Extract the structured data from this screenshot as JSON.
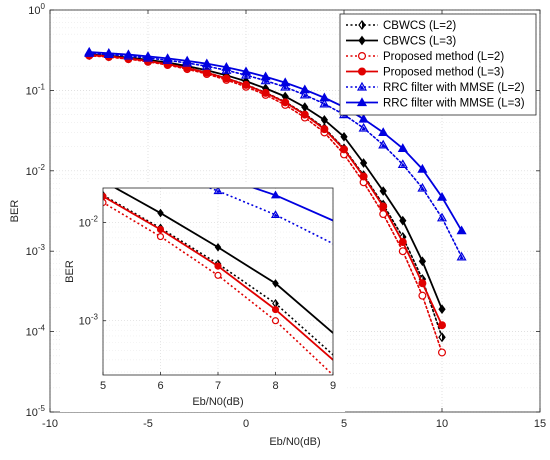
{
  "chart_data": [
    {
      "type": "line",
      "xlabel": "Eb/N0(dB)",
      "ylabel": "BER",
      "xlim": [
        -10,
        15
      ],
      "ylim": [
        1e-05,
        1
      ],
      "yscale": "log",
      "grid": true,
      "legend_position": "top-right",
      "xticks": [
        "-10",
        "-5",
        "0",
        "5",
        "10",
        "15"
      ],
      "yticks": [
        {
          "base": "10",
          "exp": "0",
          "value": 1
        },
        {
          "base": "10",
          "exp": "-1",
          "value": 0.1
        },
        {
          "base": "10",
          "exp": "-2",
          "value": 0.01
        },
        {
          "base": "10",
          "exp": "-3",
          "value": 0.001
        },
        {
          "base": "10",
          "exp": "-4",
          "value": 0.0001
        },
        {
          "base": "10",
          "exp": "-5",
          "value": 1e-05
        }
      ],
      "series": [
        {
          "name": "CBWCS (L=2)",
          "color": "#000000",
          "dash": "dotted",
          "marker": "diamond",
          "x": [
            -8,
            -7,
            -6,
            -5,
            -4,
            -3,
            -2,
            -1,
            0,
            1,
            2,
            3,
            4,
            5,
            6,
            7,
            8,
            9,
            10
          ],
          "y": [
            0.275,
            0.265,
            0.25,
            0.232,
            0.213,
            0.19,
            0.167,
            0.142,
            0.118,
            0.094,
            0.072,
            0.051,
            0.034,
            0.019,
            0.0088,
            0.0038,
            0.0015,
            0.00045,
            8.5e-05
          ]
        },
        {
          "name": "CBWCS (L=3)",
          "color": "#000000",
          "dash": "solid",
          "marker": "diamond",
          "x": [
            -8,
            -7,
            -6,
            -5,
            -4,
            -3,
            -2,
            -1,
            0,
            1,
            2,
            3,
            4,
            5,
            6,
            7,
            8,
            9,
            10
          ],
          "y": [
            0.28,
            0.27,
            0.256,
            0.24,
            0.222,
            0.2,
            0.178,
            0.154,
            0.13,
            0.106,
            0.084,
            0.062,
            0.043,
            0.0265,
            0.0125,
            0.0056,
            0.0024,
            0.00075,
            0.00019
          ]
        },
        {
          "name": "Proposed method (L=2)",
          "color": "#e00000",
          "dash": "dotted",
          "marker": "circle",
          "x": [
            -8,
            -7,
            -6,
            -5,
            -4,
            -3,
            -2,
            -1,
            0,
            1,
            2,
            3,
            4,
            5,
            6,
            7,
            8,
            9,
            10
          ],
          "y": [
            0.27,
            0.26,
            0.245,
            0.227,
            0.207,
            0.184,
            0.16,
            0.135,
            0.111,
            0.088,
            0.066,
            0.046,
            0.03,
            0.016,
            0.0072,
            0.0029,
            0.001,
            0.00028,
            5.5e-05
          ]
        },
        {
          "name": "Proposed method (L=3)",
          "color": "#e00000",
          "dash": "solid",
          "marker": "circle",
          "x": [
            -8,
            -7,
            -6,
            -5,
            -4,
            -3,
            -2,
            -1,
            0,
            1,
            2,
            3,
            4,
            5,
            6,
            7,
            8,
            9,
            10
          ],
          "y": [
            0.275,
            0.265,
            0.25,
            0.232,
            0.212,
            0.19,
            0.166,
            0.141,
            0.117,
            0.093,
            0.071,
            0.05,
            0.033,
            0.0185,
            0.0085,
            0.0036,
            0.0013,
            0.0004,
            0.00012
          ]
        },
        {
          "name": "RRC filter with MMSE (L=2)",
          "color": "#0000e0",
          "dash": "dotted",
          "marker": "triangle",
          "x": [
            -8,
            -7,
            -6,
            -5,
            -4,
            -3,
            -2,
            -1,
            0,
            1,
            2,
            3,
            4,
            5,
            6,
            7,
            8,
            9,
            10,
            11
          ],
          "y": [
            0.29,
            0.28,
            0.268,
            0.253,
            0.237,
            0.219,
            0.2,
            0.178,
            0.155,
            0.132,
            0.11,
            0.088,
            0.068,
            0.05,
            0.034,
            0.021,
            0.012,
            0.0061,
            0.0026,
            0.00085
          ]
        },
        {
          "name": "RRC filter with MMSE (L=3)",
          "color": "#0000e0",
          "dash": "solid",
          "marker": "triangle",
          "x": [
            -8,
            -7,
            -6,
            -5,
            -4,
            -3,
            -2,
            -1,
            0,
            1,
            2,
            3,
            4,
            5,
            6,
            7,
            8,
            9,
            10,
            11
          ],
          "y": [
            0.3,
            0.29,
            0.279,
            0.265,
            0.25,
            0.233,
            0.215,
            0.194,
            0.171,
            0.148,
            0.125,
            0.102,
            0.081,
            0.062,
            0.044,
            0.03,
            0.019,
            0.0105,
            0.0047,
            0.0018
          ]
        }
      ]
    },
    {
      "type": "line",
      "inset": true,
      "xlabel": "Eb/N0(dB)",
      "ylabel": "BER",
      "xlim": [
        5,
        9
      ],
      "ylim": [
        0.00028,
        0.0225
      ],
      "yscale": "log",
      "grid": true,
      "xticks": [
        "5",
        "6",
        "7",
        "8",
        "9"
      ],
      "yticks": [
        {
          "base": "10",
          "exp": "-2",
          "value": 0.01
        },
        {
          "base": "10",
          "exp": "-3",
          "value": 0.001
        }
      ],
      "series_ref": "same as main chart, zoomed"
    }
  ]
}
